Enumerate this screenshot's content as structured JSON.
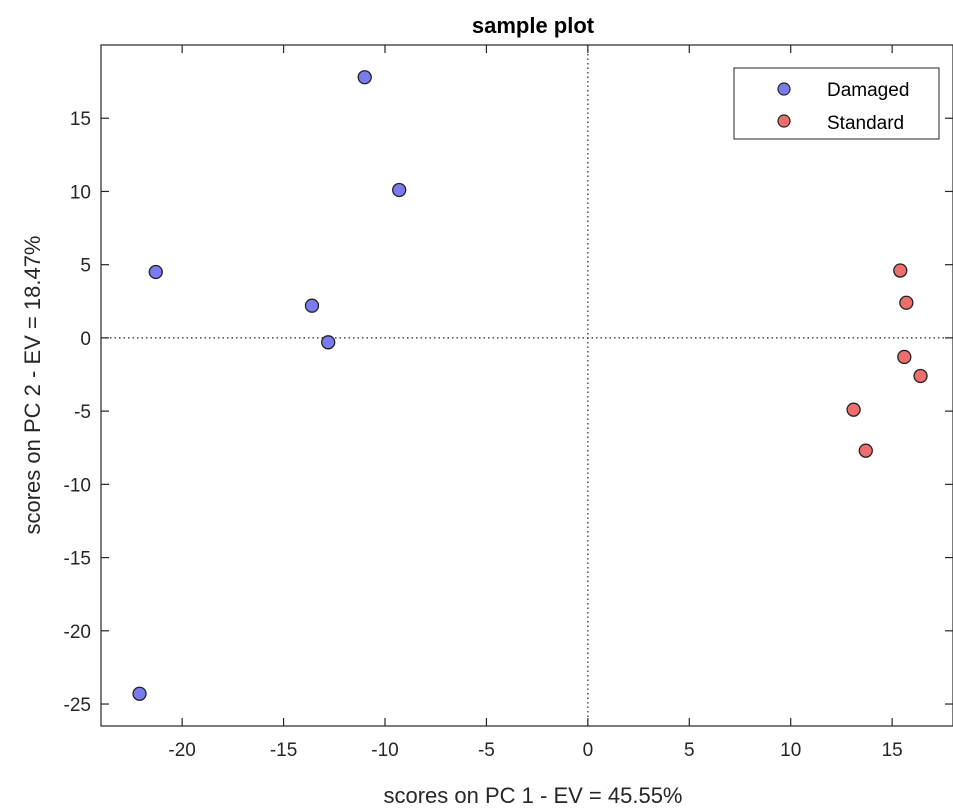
{
  "chart_data": {
    "type": "scatter",
    "title": "sample plot",
    "xlabel": "scores on PC 1 - EV = 45.55%",
    "ylabel": "scores on PC 2 - EV = 18.47%",
    "xlim": [
      -24,
      18
    ],
    "ylim": [
      -26.5,
      20
    ],
    "xticks": [
      -20,
      -15,
      -10,
      -5,
      0,
      5,
      10,
      15
    ],
    "yticks": [
      -25,
      -20,
      -15,
      -10,
      -5,
      0,
      5,
      10,
      15
    ],
    "reference_lines": {
      "x": 0,
      "y": 0,
      "style": "dotted"
    },
    "grid": false,
    "legend_position": "top-right",
    "series": [
      {
        "name": "Damaged",
        "color": "#7b7bf0",
        "x": [
          -11.0,
          -9.3,
          -21.3,
          -13.6,
          -12.8,
          -22.1
        ],
        "y": [
          17.8,
          10.1,
          4.5,
          2.2,
          -0.3,
          -24.3
        ]
      },
      {
        "name": "Standard",
        "color": "#ee6e6e",
        "x": [
          15.4,
          15.7,
          15.6,
          16.4,
          13.1,
          13.7
        ],
        "y": [
          4.6,
          2.4,
          -1.3,
          -2.6,
          -4.9,
          -7.7
        ]
      }
    ]
  }
}
